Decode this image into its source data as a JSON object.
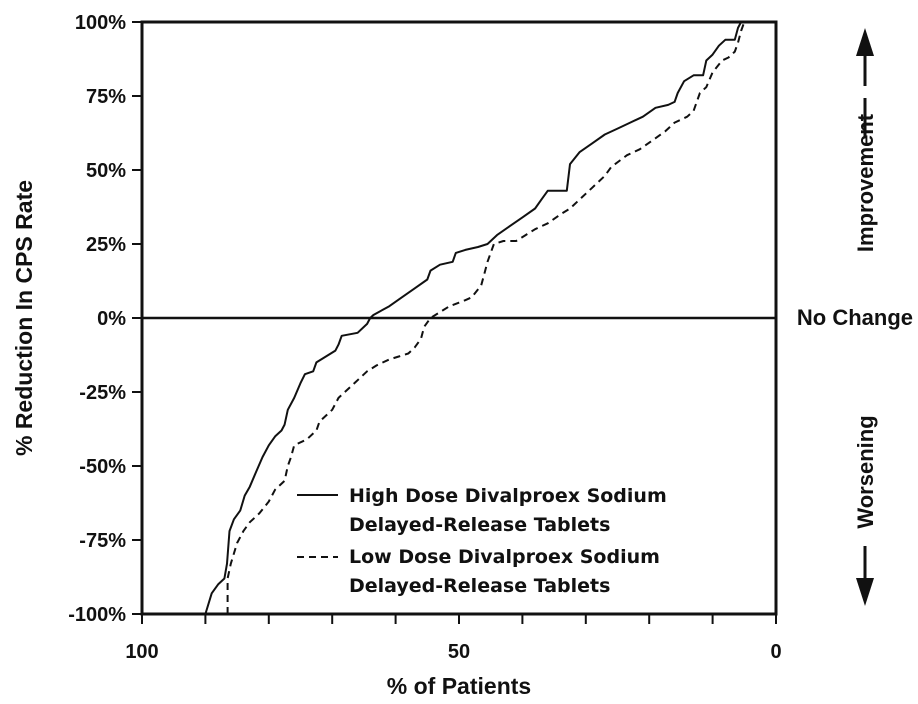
{
  "chart_data": {
    "type": "line",
    "xlabel": "% of Patients",
    "ylabel": "% Reduction In CPS Rate",
    "xlim": [
      100,
      0
    ],
    "ylim": [
      -100,
      100
    ],
    "x_reversed": true,
    "grid": false,
    "x_ticks": [
      {
        "value": 100,
        "label": "100"
      },
      {
        "value": 50,
        "label": "50"
      },
      {
        "value": 0,
        "label": "0"
      }
    ],
    "y_ticks": [
      {
        "value": 100,
        "label": "100%"
      },
      {
        "value": 75,
        "label": "75%"
      },
      {
        "value": 50,
        "label": "50%"
      },
      {
        "value": 25,
        "label": "25%"
      },
      {
        "value": 0,
        "label": "0%"
      },
      {
        "value": -25,
        "label": "-25%"
      },
      {
        "value": -50,
        "label": "-50%"
      },
      {
        "value": -75,
        "label": "-75%"
      },
      {
        "value": -100,
        "label": "-100%"
      }
    ],
    "reference_line": {
      "y": 0,
      "label": "No Change"
    },
    "annotations": {
      "up": "Improvement",
      "down": "Worsening"
    },
    "legend_position": "lower-center",
    "series": [
      {
        "name": "High Dose Divalproex Sodium Delayed-Release Tablets",
        "name_lines": [
          "High Dose Divalproex Sodium",
          "Delayed-Release Tablets"
        ],
        "style": "solid",
        "points": [
          [
            90,
            -100
          ],
          [
            89,
            -93
          ],
          [
            88,
            -90
          ],
          [
            87,
            -88
          ],
          [
            86.6,
            -83
          ],
          [
            86.2,
            -72
          ],
          [
            85.5,
            -68
          ],
          [
            84.5,
            -65
          ],
          [
            83.8,
            -60
          ],
          [
            83,
            -57
          ],
          [
            82,
            -52
          ],
          [
            81,
            -47
          ],
          [
            80,
            -43
          ],
          [
            79,
            -40
          ],
          [
            78,
            -38
          ],
          [
            77.5,
            -36
          ],
          [
            77,
            -31
          ],
          [
            76,
            -27
          ],
          [
            75,
            -22
          ],
          [
            74.3,
            -19
          ],
          [
            73,
            -18
          ],
          [
            72.5,
            -15
          ],
          [
            71,
            -13
          ],
          [
            69.5,
            -11
          ],
          [
            69,
            -9
          ],
          [
            68.5,
            -6
          ],
          [
            66,
            -5
          ],
          [
            64.5,
            -2
          ],
          [
            64,
            0
          ],
          [
            63.5,
            1
          ],
          [
            61,
            4
          ],
          [
            59,
            7
          ],
          [
            57,
            10
          ],
          [
            55,
            13
          ],
          [
            54.5,
            16
          ],
          [
            53,
            18
          ],
          [
            51,
            19
          ],
          [
            50.5,
            22
          ],
          [
            49,
            23
          ],
          [
            47,
            24
          ],
          [
            45.5,
            25
          ],
          [
            44,
            28
          ],
          [
            42,
            31
          ],
          [
            40,
            34
          ],
          [
            38,
            37
          ],
          [
            37,
            40
          ],
          [
            36,
            43
          ],
          [
            33,
            43
          ],
          [
            32.5,
            52
          ],
          [
            31,
            56
          ],
          [
            29,
            59
          ],
          [
            27,
            62
          ],
          [
            25,
            64
          ],
          [
            23,
            66
          ],
          [
            21,
            68
          ],
          [
            19,
            71
          ],
          [
            17,
            72
          ],
          [
            16,
            73
          ],
          [
            15.5,
            76
          ],
          [
            14.5,
            80
          ],
          [
            13,
            82
          ],
          [
            11.5,
            82
          ],
          [
            11,
            87
          ],
          [
            10,
            89
          ],
          [
            9,
            92
          ],
          [
            8,
            94
          ],
          [
            6.5,
            94
          ],
          [
            6,
            98
          ],
          [
            5.5,
            100
          ]
        ]
      },
      {
        "name": "Low Dose Divalproex Sodium Delayed-Release Tablets",
        "name_lines": [
          "Low Dose Divalproex Sodium",
          "Delayed-Release Tablets"
        ],
        "style": "dashed",
        "points": [
          [
            86.5,
            -100
          ],
          [
            86.5,
            -88
          ],
          [
            86,
            -83
          ],
          [
            85,
            -76
          ],
          [
            84,
            -72
          ],
          [
            83,
            -69
          ],
          [
            81.5,
            -66
          ],
          [
            80,
            -62
          ],
          [
            79,
            -58
          ],
          [
            77.5,
            -55
          ],
          [
            77,
            -50
          ],
          [
            76.5,
            -47
          ],
          [
            76,
            -43
          ],
          [
            74,
            -41
          ],
          [
            72.5,
            -38
          ],
          [
            72,
            -35
          ],
          [
            70,
            -31
          ],
          [
            69,
            -27
          ],
          [
            67.5,
            -24
          ],
          [
            66,
            -21
          ],
          [
            64.5,
            -18
          ],
          [
            63,
            -16
          ],
          [
            61,
            -14
          ],
          [
            59.5,
            -13
          ],
          [
            58,
            -12
          ],
          [
            57,
            -10
          ],
          [
            56,
            -7
          ],
          [
            55.5,
            -3
          ],
          [
            54.5,
            0
          ],
          [
            53,
            2
          ],
          [
            51.5,
            4
          ],
          [
            49,
            6
          ],
          [
            48,
            7
          ],
          [
            46.5,
            11
          ],
          [
            46,
            15
          ],
          [
            45.5,
            19
          ],
          [
            45,
            22
          ],
          [
            44.5,
            25
          ],
          [
            43,
            26
          ],
          [
            41,
            26
          ],
          [
            39.5,
            28
          ],
          [
            38,
            30
          ],
          [
            36,
            32
          ],
          [
            34,
            35
          ],
          [
            32.5,
            37
          ],
          [
            31,
            40
          ],
          [
            30,
            42
          ],
          [
            29,
            44
          ],
          [
            28,
            46
          ],
          [
            27,
            48
          ],
          [
            26,
            51
          ],
          [
            23.5,
            55
          ],
          [
            21.5,
            57
          ],
          [
            19.5,
            60
          ],
          [
            17.5,
            63
          ],
          [
            16,
            66
          ],
          [
            14,
            68
          ],
          [
            13,
            70
          ],
          [
            12,
            76
          ],
          [
            11,
            78
          ],
          [
            10,
            83
          ],
          [
            8.5,
            87
          ],
          [
            7.5,
            88
          ],
          [
            6.5,
            90
          ],
          [
            6,
            93
          ],
          [
            5.5,
            97
          ],
          [
            5,
            100
          ]
        ]
      }
    ]
  }
}
